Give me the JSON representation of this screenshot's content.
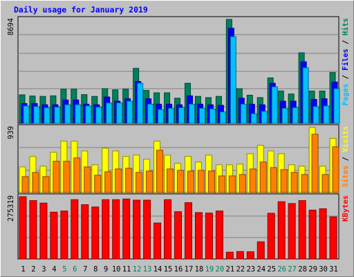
{
  "chart_data": {
    "type": "bar",
    "title": "Daily usage for January 2019",
    "categories": [
      "1",
      "2",
      "3",
      "4",
      "5",
      "6",
      "7",
      "8",
      "9",
      "10",
      "11",
      "12",
      "13",
      "14",
      "15",
      "16",
      "17",
      "18",
      "19",
      "20",
      "21",
      "22",
      "23",
      "24",
      "25",
      "26",
      "27",
      "28",
      "29",
      "30",
      "31"
    ],
    "weekend_days": [
      "5",
      "6",
      "12",
      "13",
      "19",
      "20",
      "26",
      "27"
    ],
    "panels": [
      {
        "id": "top",
        "ylim": [
          0,
          8694
        ],
        "ytick_label": "8694",
        "legend": [
          "Pages",
          "/",
          "Files",
          "/",
          "Hits"
        ],
        "series": [
          {
            "name": "Hits",
            "color": "#00805c",
            "values": [
              2380,
              2280,
              2250,
              2300,
              2850,
              2850,
              2400,
              2250,
              2900,
              2800,
              2850,
              4600,
              2750,
              2550,
              2550,
              2100,
              3350,
              2250,
              2150,
              2250,
              8694,
              2900,
              2350,
              2150,
              3800,
              2700,
              2450,
              5900,
              2700,
              2700,
              4250
            ]
          },
          {
            "name": "Files",
            "color": "#0000ff",
            "values": [
              1650,
              1650,
              1550,
              1550,
              1950,
              1950,
              1600,
              1550,
              2200,
              1850,
              2050,
              3500,
              2050,
              1600,
              1600,
              1550,
              2300,
              1600,
              1550,
              1500,
              7950,
              2100,
              1600,
              1550,
              3350,
              1850,
              1850,
              5150,
              2000,
              2050,
              3450
            ]
          },
          {
            "name": "Pages",
            "color": "#00c0ff",
            "values": [
              1450,
              1400,
              1300,
              1350,
              1550,
              1550,
              1450,
              1350,
              1700,
              1700,
              1850,
              3350,
              1600,
              1150,
              1250,
              1300,
              1600,
              1250,
              1200,
              950,
              7250,
              1600,
              800,
              1000,
              3050,
              1250,
              1300,
              4650,
              1400,
              1450,
              2900
            ]
          }
        ]
      },
      {
        "id": "middle",
        "ylim": [
          0,
          939
        ],
        "ytick_label": "939",
        "legend": [
          "Sites",
          "/",
          "Visits"
        ],
        "series": [
          {
            "name": "Visits",
            "color": "#ffff00",
            "values": [
              370,
              520,
              380,
              580,
              740,
              740,
              600,
              400,
              640,
              600,
              520,
              540,
              480,
              740,
              540,
              420,
              520,
              440,
              540,
              400,
              400,
              410,
              560,
              680,
              600,
              560,
              400,
              380,
              939,
              380,
              780
            ]
          },
          {
            "name": "Sites",
            "color": "#ff8000",
            "values": [
              230,
              290,
              230,
              450,
              450,
              500,
              370,
              250,
              300,
              340,
              350,
              290,
              310,
              610,
              340,
              320,
              310,
              320,
              310,
              240,
              240,
              260,
              340,
              440,
              360,
              330,
              290,
              260,
              840,
              260,
              660
            ]
          }
        ]
      },
      {
        "id": "bottom",
        "ylim": [
          0,
          275319
        ],
        "ytick_label": "275319",
        "legend": [
          "KBytes"
        ],
        "series": [
          {
            "name": "KBytes",
            "color": "#ff0000",
            "values": [
              275319,
              258000,
              247000,
              207000,
              212000,
              262000,
              240000,
              230000,
              262000,
              262000,
              265000,
              260000,
              260000,
              159000,
              262000,
              209000,
              249000,
              205000,
              203000,
              212000,
              30000,
              33000,
              32000,
              76000,
              202000,
              253000,
              245000,
              258000,
              216000,
              222000,
              186000
            ]
          }
        ]
      }
    ],
    "grid": true
  }
}
